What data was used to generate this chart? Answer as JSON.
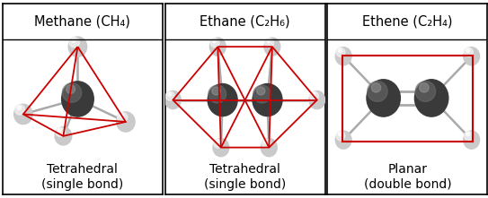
{
  "title_methane_full": "Methane (CH₄)",
  "title_ethane_full": "Ethane (C₂H₆)",
  "title_ethene_full": "Ethene (C₂H₄)",
  "label_methane": "Tetrahedral\n(single bond)",
  "label_ethane": "Tetrahedral\n(single bond)",
  "label_ethene": "Planar\n(double bond)",
  "bg_color": "#ffffff",
  "border_color": "#000000",
  "red_color": "#cc0000",
  "dark_atom_color": "#606060",
  "bond_color": "#aaaaaa",
  "title_fontsize": 10.5,
  "label_fontsize": 10
}
